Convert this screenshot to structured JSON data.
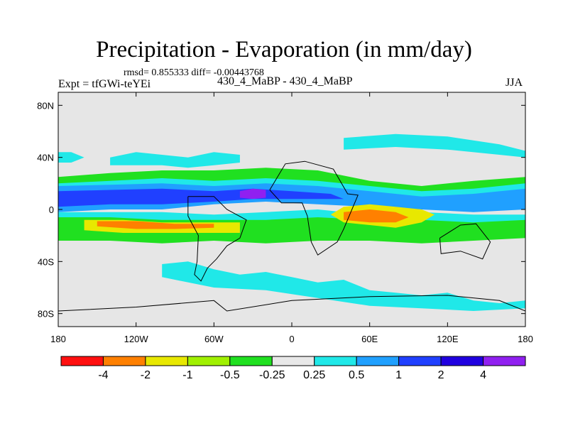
{
  "chart_data": {
    "type": "heatmap",
    "title": "Precipitation - Evaporation (in mm/day)",
    "stats": "rmsd= 0.855333 diff= -0.00443768",
    "experiment": "Expt = tfGWi-teYEi",
    "comparison": "430_4_MaBP - 430_4_MaBP",
    "season": "JJA",
    "x_axis": {
      "range": [
        -180,
        180
      ],
      "ticks": [
        {
          "value": -180,
          "label": "180"
        },
        {
          "value": -120,
          "label": "120W"
        },
        {
          "value": -60,
          "label": "60W"
        },
        {
          "value": 0,
          "label": "0"
        },
        {
          "value": 60,
          "label": "60E"
        },
        {
          "value": 120,
          "label": "120E"
        },
        {
          "value": 180,
          "label": "180"
        }
      ]
    },
    "y_axis": {
      "range": [
        -90,
        90
      ],
      "ticks": [
        {
          "value": 80,
          "label": "80N"
        },
        {
          "value": 40,
          "label": "40N"
        },
        {
          "value": 0,
          "label": "0"
        },
        {
          "value": -40,
          "label": "40S"
        },
        {
          "value": -80,
          "label": "80S"
        }
      ]
    },
    "colorbar": {
      "colors": [
        "#ff1010",
        "#ff8000",
        "#e8e800",
        "#a0f000",
        "#20e020",
        "#e8e8e8",
        "#20e8e8",
        "#20a0ff",
        "#2040ff",
        "#2000e0",
        "#9020f0"
      ],
      "labels": [
        "-4",
        "-2",
        "-1",
        "-0.5",
        "-0.25",
        "0.25",
        "0.5",
        "1",
        "2",
        "4"
      ]
    },
    "background_color": "#e6e6e6",
    "regions": [
      {
        "category": "green",
        "lon_lat": [
          [
            -180,
            25
          ],
          [
            -140,
            28
          ],
          [
            -100,
            30
          ],
          [
            -60,
            30
          ],
          [
            -20,
            32
          ],
          [
            20,
            30
          ],
          [
            60,
            22
          ],
          [
            100,
            18
          ],
          [
            140,
            22
          ],
          [
            180,
            25
          ],
          [
            180,
            10
          ],
          [
            140,
            12
          ],
          [
            100,
            10
          ],
          [
            60,
            8
          ],
          [
            20,
            12
          ],
          [
            -20,
            14
          ],
          [
            -60,
            14
          ],
          [
            -100,
            12
          ],
          [
            -140,
            14
          ],
          [
            -180,
            12
          ]
        ]
      },
      {
        "category": "cyan",
        "lon_lat": [
          [
            -180,
            20
          ],
          [
            -140,
            22
          ],
          [
            -100,
            24
          ],
          [
            -60,
            22
          ],
          [
            -20,
            24
          ],
          [
            20,
            22
          ],
          [
            60,
            18
          ],
          [
            100,
            14
          ],
          [
            140,
            16
          ],
          [
            180,
            20
          ],
          [
            180,
            12
          ],
          [
            140,
            10
          ],
          [
            100,
            8
          ],
          [
            60,
            6
          ],
          [
            20,
            10
          ],
          [
            -20,
            12
          ],
          [
            -60,
            12
          ],
          [
            -100,
            10
          ],
          [
            -140,
            12
          ],
          [
            -180,
            10
          ]
        ]
      },
      {
        "category": "blue1",
        "lon_lat": [
          [
            -180,
            18
          ],
          [
            -140,
            19
          ],
          [
            -100,
            20
          ],
          [
            -60,
            18
          ],
          [
            -20,
            20
          ],
          [
            20,
            18
          ],
          [
            60,
            14
          ],
          [
            100,
            10
          ],
          [
            140,
            12
          ],
          [
            180,
            16
          ],
          [
            180,
            0
          ],
          [
            140,
            -2
          ],
          [
            100,
            0
          ],
          [
            60,
            2
          ],
          [
            20,
            4
          ],
          [
            -20,
            6
          ],
          [
            -60,
            4
          ],
          [
            -100,
            0
          ],
          [
            -140,
            0
          ],
          [
            -180,
            -2
          ]
        ]
      },
      {
        "category": "blue2",
        "lon_lat": [
          [
            -180,
            14
          ],
          [
            -140,
            15
          ],
          [
            -100,
            16
          ],
          [
            -60,
            14
          ],
          [
            -30,
            16
          ],
          [
            0,
            14
          ],
          [
            30,
            12
          ],
          [
            40,
            8
          ],
          [
            0,
            8
          ],
          [
            -30,
            8
          ],
          [
            -60,
            6
          ],
          [
            -100,
            4
          ],
          [
            -140,
            4
          ],
          [
            -180,
            2
          ]
        ]
      },
      {
        "category": "purple",
        "lon_lat": [
          [
            -40,
            14
          ],
          [
            -30,
            16
          ],
          [
            -20,
            15
          ],
          [
            -20,
            9
          ],
          [
            -30,
            8
          ],
          [
            -40,
            9
          ]
        ]
      },
      {
        "category": "cyan",
        "lon_lat": [
          [
            -180,
            -2
          ],
          [
            -140,
            -2
          ],
          [
            -100,
            -2
          ],
          [
            -60,
            -4
          ],
          [
            -20,
            -2
          ],
          [
            20,
            0
          ],
          [
            60,
            -4
          ],
          [
            100,
            -2
          ],
          [
            140,
            -4
          ],
          [
            180,
            -4
          ],
          [
            180,
            -10
          ],
          [
            140,
            -12
          ],
          [
            100,
            -12
          ],
          [
            60,
            -14
          ],
          [
            20,
            -12
          ],
          [
            -20,
            -12
          ],
          [
            -60,
            -14
          ],
          [
            -100,
            -14
          ],
          [
            -140,
            -12
          ],
          [
            -180,
            -12
          ]
        ]
      },
      {
        "category": "green",
        "lon_lat": [
          [
            -180,
            -6
          ],
          [
            -140,
            -6
          ],
          [
            -100,
            -8
          ],
          [
            -60,
            -8
          ],
          [
            -20,
            -8
          ],
          [
            20,
            -6
          ],
          [
            60,
            -8
          ],
          [
            100,
            -8
          ],
          [
            140,
            -10
          ],
          [
            180,
            -8
          ],
          [
            180,
            -22
          ],
          [
            140,
            -24
          ],
          [
            100,
            -26
          ],
          [
            60,
            -24
          ],
          [
            20,
            -24
          ],
          [
            -20,
            -26
          ],
          [
            -60,
            -24
          ],
          [
            -100,
            -26
          ],
          [
            -140,
            -24
          ],
          [
            -180,
            -24
          ]
        ]
      },
      {
        "category": "yellow",
        "lon_lat": [
          [
            -160,
            -8
          ],
          [
            -130,
            -8
          ],
          [
            -100,
            -10
          ],
          [
            -70,
            -10
          ],
          [
            -40,
            -10
          ],
          [
            -40,
            -18
          ],
          [
            -70,
            -18
          ],
          [
            -100,
            -18
          ],
          [
            -130,
            -18
          ],
          [
            -160,
            -16
          ]
        ]
      },
      {
        "category": "orange",
        "lon_lat": [
          [
            -150,
            -9
          ],
          [
            -120,
            -9
          ],
          [
            -90,
            -11
          ],
          [
            -60,
            -11
          ],
          [
            -60,
            -14
          ],
          [
            -90,
            -15
          ],
          [
            -120,
            -15
          ],
          [
            -150,
            -13
          ]
        ]
      },
      {
        "category": "yellow",
        "lon_lat": [
          [
            40,
            2
          ],
          [
            60,
            4
          ],
          [
            80,
            2
          ],
          [
            100,
            0
          ],
          [
            110,
            -4
          ],
          [
            100,
            -10
          ],
          [
            80,
            -14
          ],
          [
            60,
            -12
          ],
          [
            40,
            -10
          ],
          [
            30,
            -4
          ]
        ]
      },
      {
        "category": "orange",
        "lon_lat": [
          [
            40,
            -2
          ],
          [
            60,
            0
          ],
          [
            80,
            -2
          ],
          [
            90,
            -6
          ],
          [
            80,
            -10
          ],
          [
            60,
            -10
          ],
          [
            40,
            -8
          ]
        ]
      },
      {
        "category": "cyan",
        "lon_lat": [
          [
            -140,
            40
          ],
          [
            -120,
            44
          ],
          [
            -100,
            42
          ],
          [
            -80,
            40
          ],
          [
            -60,
            44
          ],
          [
            -40,
            42
          ],
          [
            -40,
            36
          ],
          [
            -60,
            34
          ],
          [
            -80,
            32
          ],
          [
            -100,
            34
          ],
          [
            -120,
            34
          ],
          [
            -140,
            34
          ]
        ]
      },
      {
        "category": "cyan",
        "lon_lat": [
          [
            40,
            55
          ],
          [
            80,
            58
          ],
          [
            120,
            56
          ],
          [
            160,
            50
          ],
          [
            180,
            45
          ],
          [
            180,
            40
          ],
          [
            160,
            42
          ],
          [
            120,
            46
          ],
          [
            80,
            48
          ],
          [
            40,
            46
          ]
        ]
      },
      {
        "category": "cyan",
        "lon_lat": [
          [
            -180,
            44
          ],
          [
            -170,
            44
          ],
          [
            -160,
            40
          ],
          [
            -170,
            36
          ],
          [
            -180,
            36
          ]
        ]
      },
      {
        "category": "cyan",
        "lon_lat": [
          [
            -100,
            -42
          ],
          [
            -80,
            -40
          ],
          [
            -60,
            -46
          ],
          [
            -40,
            -50
          ],
          [
            -20,
            -48
          ],
          [
            0,
            -52
          ],
          [
            20,
            -56
          ],
          [
            40,
            -54
          ],
          [
            60,
            -62
          ],
          [
            80,
            -64
          ],
          [
            100,
            -66
          ],
          [
            120,
            -64
          ],
          [
            140,
            -70
          ],
          [
            160,
            -72
          ],
          [
            180,
            -70
          ],
          [
            180,
            -76
          ],
          [
            140,
            -78
          ],
          [
            100,
            -76
          ],
          [
            60,
            -74
          ],
          [
            20,
            -68
          ],
          [
            -20,
            -62
          ],
          [
            -60,
            -60
          ],
          [
            -100,
            -52
          ]
        ]
      }
    ],
    "coastlines": [
      {
        "name": "South America",
        "lon_lat": [
          [
            -80,
            10
          ],
          [
            -60,
            10
          ],
          [
            -50,
            0
          ],
          [
            -35,
            -8
          ],
          [
            -40,
            -22
          ],
          [
            -50,
            -28
          ],
          [
            -58,
            -38
          ],
          [
            -65,
            -45
          ],
          [
            -70,
            -55
          ],
          [
            -75,
            -50
          ],
          [
            -73,
            -40
          ],
          [
            -72,
            -20
          ],
          [
            -80,
            -5
          ],
          [
            -80,
            10
          ]
        ]
      },
      {
        "name": "Africa",
        "lon_lat": [
          [
            -17,
            15
          ],
          [
            -5,
            35
          ],
          [
            10,
            37
          ],
          [
            32,
            31
          ],
          [
            43,
            12
          ],
          [
            51,
            11
          ],
          [
            40,
            -15
          ],
          [
            35,
            -25
          ],
          [
            20,
            -35
          ],
          [
            15,
            -25
          ],
          [
            12,
            -5
          ],
          [
            8,
            5
          ],
          [
            -8,
            5
          ],
          [
            -17,
            15
          ]
        ]
      },
      {
        "name": "Australia",
        "lon_lat": [
          [
            114,
            -22
          ],
          [
            130,
            -12
          ],
          [
            142,
            -11
          ],
          [
            153,
            -25
          ],
          [
            147,
            -38
          ],
          [
            130,
            -32
          ],
          [
            115,
            -34
          ],
          [
            114,
            -22
          ]
        ]
      },
      {
        "name": "Antarctica",
        "lon_lat": [
          [
            -180,
            -78
          ],
          [
            -120,
            -75
          ],
          [
            -60,
            -70
          ],
          [
            -50,
            -78
          ],
          [
            0,
            -70
          ],
          [
            60,
            -67
          ],
          [
            120,
            -66
          ],
          [
            160,
            -70
          ],
          [
            180,
            -78
          ]
        ]
      }
    ]
  }
}
